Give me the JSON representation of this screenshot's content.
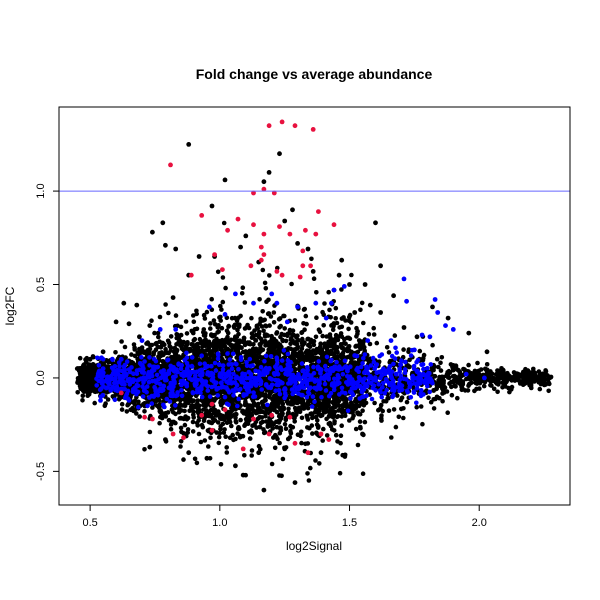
{
  "chart_data": {
    "type": "scatter",
    "title": "Fold change vs average abundance",
    "xlabel": "log2Signal",
    "ylabel": "log2FC",
    "xlim": [
      0.38,
      2.35
    ],
    "ylim": [
      -0.68,
      1.45
    ],
    "xticks": [
      "0.5",
      "1.0",
      "1.5",
      "2.0"
    ],
    "yticks": [
      "-0.5",
      "0.0",
      "0.5",
      "1.0"
    ],
    "hline": {
      "y": 1.0,
      "color": "#6666ff"
    },
    "colors": {
      "black": "#000000",
      "blue": "#0000ff",
      "red": "#e8113f"
    },
    "grid": false,
    "legend": "none",
    "series": [
      {
        "color": "black",
        "cloud": true,
        "points": [
          [
            0.88,
            1.25
          ],
          [
            1.02,
            1.06
          ],
          [
            1.19,
            1.1
          ],
          [
            1.23,
            1.2
          ],
          [
            1.17,
            1.05
          ],
          [
            0.78,
            0.83
          ],
          [
            0.74,
            0.78
          ],
          [
            0.79,
            0.71
          ],
          [
            0.83,
            0.69
          ],
          [
            0.92,
            0.65
          ],
          [
            1.1,
            0.76
          ],
          [
            1.25,
            0.84
          ],
          [
            1.28,
            0.9
          ],
          [
            1.6,
            0.83
          ],
          [
            1.34,
            0.69
          ],
          [
            1.47,
            0.63
          ],
          [
            1.5,
            0.5
          ],
          [
            1.56,
            0.5
          ],
          [
            1.67,
            0.44
          ],
          [
            1.82,
            0.38
          ],
          [
            1.88,
            0.32
          ],
          [
            1.96,
            0.24
          ],
          [
            2.03,
            0.14
          ],
          [
            0.63,
            0.4
          ],
          [
            0.68,
            0.39
          ],
          [
            1.58,
            0.39
          ],
          [
            1.62,
            0.35
          ],
          [
            0.6,
            0.3
          ],
          [
            1.09,
            -0.52
          ],
          [
            1.17,
            -0.6
          ],
          [
            1.29,
            -0.56
          ],
          [
            0.73,
            -0.37
          ],
          [
            0.79,
            -0.33
          ],
          [
            1.55,
            -0.3
          ],
          [
            1.39,
            -0.4
          ],
          [
            0.95,
            -0.43
          ],
          [
            1.06,
            -0.47
          ],
          [
            1.46,
            0.55
          ],
          [
            1.3,
            0.72
          ],
          [
            0.97,
            0.92
          ],
          [
            0.82,
            0.43
          ],
          [
            0.69,
            0.22
          ],
          [
            0.73,
            0.28
          ],
          [
            1.52,
            0.35
          ],
          [
            1.71,
            0.27
          ],
          [
            1.76,
            0.22
          ],
          [
            2.25,
            0.01
          ],
          [
            2.27,
            0.0
          ],
          [
            2.21,
            -0.01
          ],
          [
            2.15,
            0.02
          ],
          [
            1.15,
            -0.4
          ],
          [
            1.25,
            -0.38
          ],
          [
            0.88,
            -0.4
          ],
          [
            1.62,
            0.6
          ],
          [
            1.44,
            0.47
          ],
          [
            1.08,
            0.7
          ],
          [
            0.98,
            0.65
          ],
          [
            1.15,
            0.62
          ],
          [
            1.36,
            0.57
          ],
          [
            0.88,
            0.55
          ],
          [
            0.65,
            0.29
          ],
          [
            0.55,
            0.14
          ],
          [
            0.5,
            0.1
          ],
          [
            0.46,
            0.04
          ],
          [
            0.47,
            -0.05
          ]
        ]
      },
      {
        "color": "blue",
        "points": [
          [
            1.71,
            0.53
          ],
          [
            1.83,
            0.42
          ],
          [
            1.72,
            0.41
          ],
          [
            1.84,
            0.35
          ],
          [
            1.87,
            0.28
          ],
          [
            1.9,
            0.26
          ],
          [
            1.78,
            0.23
          ],
          [
            1.81,
            0.22
          ],
          [
            1.48,
            0.49
          ],
          [
            1.44,
            0.47
          ],
          [
            1.37,
            0.4
          ],
          [
            1.43,
            0.4
          ],
          [
            1.3,
            0.38
          ],
          [
            1.2,
            0.45
          ],
          [
            1.06,
            0.45
          ],
          [
            1.13,
            0.4
          ],
          [
            1.22,
            0.4
          ],
          [
            1.02,
            0.34
          ],
          [
            0.96,
            0.38
          ],
          [
            1.41,
            0.32
          ],
          [
            0.83,
            0.26
          ],
          [
            0.77,
            0.26
          ],
          [
            1.26,
            0.3
          ],
          [
            1.57,
            0.2
          ],
          [
            1.66,
            0.2
          ],
          [
            0.7,
            0.2
          ],
          [
            0.62,
            0.1
          ],
          [
            0.55,
            0.05
          ],
          [
            0.58,
            -0.06
          ],
          [
            0.54,
            -0.12
          ],
          [
            0.65,
            -0.12
          ],
          [
            1.75,
            0.15
          ],
          [
            1.52,
            0.12
          ],
          [
            1.6,
            0.06
          ],
          [
            1.68,
            0.02
          ],
          [
            1.95,
            0.02
          ],
          [
            2.02,
            0.0
          ]
        ]
      },
      {
        "color": "red",
        "points": [
          [
            1.24,
            1.37
          ],
          [
            1.19,
            1.35
          ],
          [
            1.29,
            1.35
          ],
          [
            1.36,
            1.33
          ],
          [
            0.81,
            1.14
          ],
          [
            1.17,
            1.01
          ],
          [
            1.13,
            0.99
          ],
          [
            1.21,
            0.99
          ],
          [
            0.93,
            0.87
          ],
          [
            1.07,
            0.85
          ],
          [
            1.13,
            0.82
          ],
          [
            1.38,
            0.89
          ],
          [
            1.44,
            0.82
          ],
          [
            1.23,
            0.81
          ],
          [
            1.33,
            0.79
          ],
          [
            1.03,
            0.79
          ],
          [
            1.17,
            0.77
          ],
          [
            1.27,
            0.77
          ],
          [
            1.37,
            0.77
          ],
          [
            1.16,
            0.7
          ],
          [
            1.32,
            0.68
          ],
          [
            1.17,
            0.66
          ],
          [
            0.98,
            0.66
          ],
          [
            1.16,
            0.63
          ],
          [
            1.32,
            0.6
          ],
          [
            1.12,
            0.6
          ],
          [
            1.01,
            0.58
          ],
          [
            1.22,
            0.57
          ],
          [
            1.24,
            0.55
          ],
          [
            1.31,
            0.54
          ],
          [
            0.89,
            0.55
          ],
          [
            1.35,
            0.6
          ],
          [
            0.82,
            -0.3
          ],
          [
            0.86,
            -0.32
          ],
          [
            0.74,
            -0.22
          ],
          [
            0.71,
            -0.21
          ],
          [
            0.97,
            -0.28
          ],
          [
            1.09,
            -0.38
          ],
          [
            1.19,
            -0.3
          ],
          [
            1.29,
            -0.35
          ],
          [
            1.34,
            -0.4
          ],
          [
            1.42,
            -0.33
          ],
          [
            1.39,
            -0.3
          ],
          [
            1.27,
            -0.21
          ],
          [
            0.93,
            -0.2
          ],
          [
            0.97,
            -0.14
          ],
          [
            1.02,
            -0.17
          ],
          [
            1.13,
            -0.22
          ],
          [
            1.2,
            -0.2
          ],
          [
            0.62,
            -0.08
          ]
        ]
      }
    ]
  }
}
